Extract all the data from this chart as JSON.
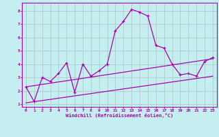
{
  "xlabel": "Windchill (Refroidissement éolien,°C)",
  "background_color": "#c5eef0",
  "line_color": "#aa00aa",
  "grid_color": "#b0c8c8",
  "xlim": [
    -0.5,
    23.5
  ],
  "ylim": [
    0.8,
    8.6
  ],
  "xticks": [
    0,
    1,
    2,
    3,
    4,
    5,
    6,
    7,
    8,
    9,
    10,
    11,
    12,
    13,
    14,
    15,
    16,
    17,
    18,
    19,
    20,
    21,
    22,
    23
  ],
  "yticks": [
    1,
    2,
    3,
    4,
    5,
    6,
    7,
    8
  ],
  "line1_x": [
    0,
    1,
    2,
    3,
    4,
    5,
    6,
    7,
    8,
    9,
    10,
    11,
    12,
    13,
    14,
    15,
    16,
    17,
    18,
    19,
    20,
    21,
    22,
    23
  ],
  "line1_y": [
    2.3,
    1.2,
    3.0,
    2.7,
    3.3,
    4.1,
    1.9,
    4.0,
    3.1,
    3.5,
    4.0,
    6.5,
    7.2,
    8.1,
    7.9,
    7.6,
    5.4,
    5.2,
    4.0,
    3.2,
    3.3,
    3.1,
    4.2,
    4.5
  ],
  "line2_x": [
    0,
    23
  ],
  "line2_y": [
    2.3,
    4.4
  ],
  "line3_x": [
    0,
    23
  ],
  "line3_y": [
    1.1,
    3.1
  ]
}
